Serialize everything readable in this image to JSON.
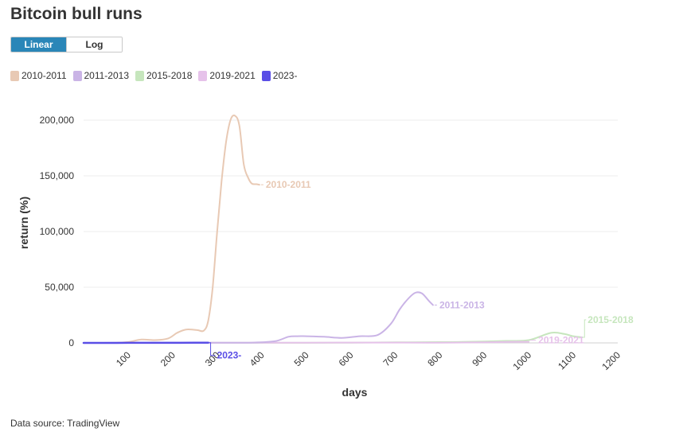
{
  "title": "Bitcoin bull runs",
  "toggle": {
    "linear_label": "Linear",
    "log_label": "Log",
    "active": "Linear"
  },
  "source_text": "Data source: TradingView",
  "chart_data": {
    "type": "line",
    "title": "Bitcoin bull runs",
    "xlabel": "days",
    "ylabel": "return (%)",
    "xlim": [
      0,
      1200
    ],
    "ylim": [
      0,
      215000
    ],
    "x_ticks": [
      100,
      200,
      300,
      400,
      500,
      600,
      700,
      800,
      900,
      1000,
      1100,
      1200
    ],
    "x_tick_labels": [
      "100",
      "200",
      "300",
      "400",
      "500",
      "600",
      "700",
      "800",
      "900",
      "1000",
      "1100",
      "1200"
    ],
    "y_ticks": [
      0,
      50000,
      100000,
      150000,
      200000
    ],
    "y_tick_labels": [
      "0",
      "50,000",
      "100,000",
      "150,000",
      "200,000"
    ],
    "grid": true,
    "legend": "top-left",
    "series": [
      {
        "name": "2010-2011",
        "color": "#e8c9b4",
        "x": [
          0,
          50,
          70,
          100,
          130,
          160,
          190,
          210,
          230,
          255,
          270,
          280,
          290,
          300,
          310,
          320,
          330,
          340,
          350,
          360,
          370,
          378,
          388,
          395
        ],
        "y": [
          0,
          0,
          100,
          800,
          3000,
          2500,
          4000,
          9000,
          12000,
          11500,
          11000,
          20000,
          50000,
          100000,
          145000,
          180000,
          200000,
          204000,
          195000,
          160000,
          148000,
          143000,
          142500,
          142000
        ]
      },
      {
        "name": "2011-2013",
        "color": "#cab4e6",
        "x": [
          0,
          100,
          200,
          300,
          380,
          430,
          460,
          480,
          500,
          540,
          580,
          620,
          660,
          690,
          710,
          730,
          745,
          760,
          775,
          785
        ],
        "y": [
          0,
          100,
          100,
          200,
          300,
          1500,
          5500,
          6000,
          6000,
          5500,
          4500,
          6000,
          7000,
          17000,
          30000,
          40000,
          45000,
          44500,
          38000,
          34000
        ]
      },
      {
        "name": "2015-2018",
        "color": "#c6e6bd",
        "x": [
          0,
          300,
          500,
          600,
          700,
          800,
          850,
          900,
          950,
          1000,
          1050,
          1080,
          1100,
          1120
        ],
        "y": [
          0,
          100,
          100,
          200,
          500,
          700,
          900,
          1200,
          1800,
          2500,
          9000,
          8000,
          6000,
          5000
        ]
      },
      {
        "name": "2019-2021",
        "color": "#e6c2ea",
        "x": [
          0,
          300,
          500,
          700,
          800,
          900,
          950,
          1000
        ],
        "y": [
          0,
          100,
          200,
          300,
          200,
          500,
          900,
          1000
        ]
      },
      {
        "name": "2023-",
        "color": "#5a4ee6",
        "x": [
          0,
          50,
          100,
          150,
          200,
          250,
          280
        ],
        "y": [
          0,
          0,
          50,
          80,
          100,
          150,
          200
        ]
      }
    ]
  }
}
